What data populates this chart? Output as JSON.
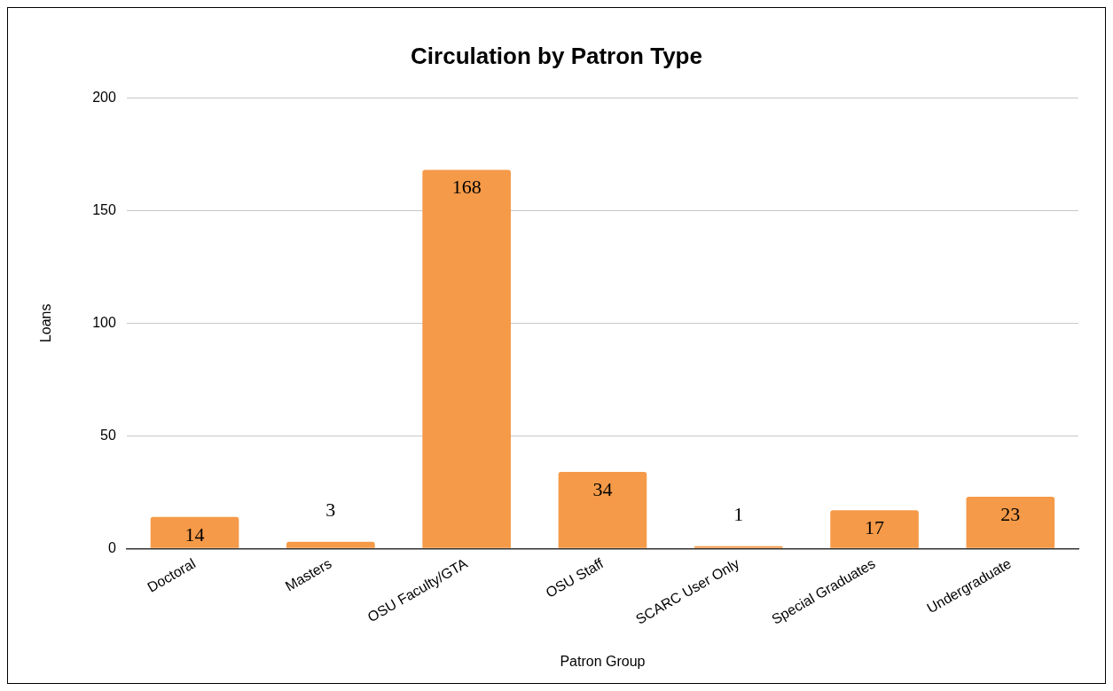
{
  "chart_data": {
    "type": "bar",
    "title": "Circulation by Patron Type",
    "xlabel": "Patron Group",
    "ylabel": "Loans",
    "categories": [
      "Doctoral",
      "Masters",
      "OSU Faculty/GTA",
      "OSU Staff",
      "SCARC User Only",
      "Special Graduates",
      "Undergraduate"
    ],
    "values": [
      14,
      3,
      168,
      34,
      1,
      17,
      23
    ],
    "color": "#f59a48",
    "ylim": [
      0,
      200
    ],
    "yticks": [
      0,
      50,
      100,
      150,
      200
    ],
    "grid": "y",
    "data_labels": true,
    "legend": false
  }
}
